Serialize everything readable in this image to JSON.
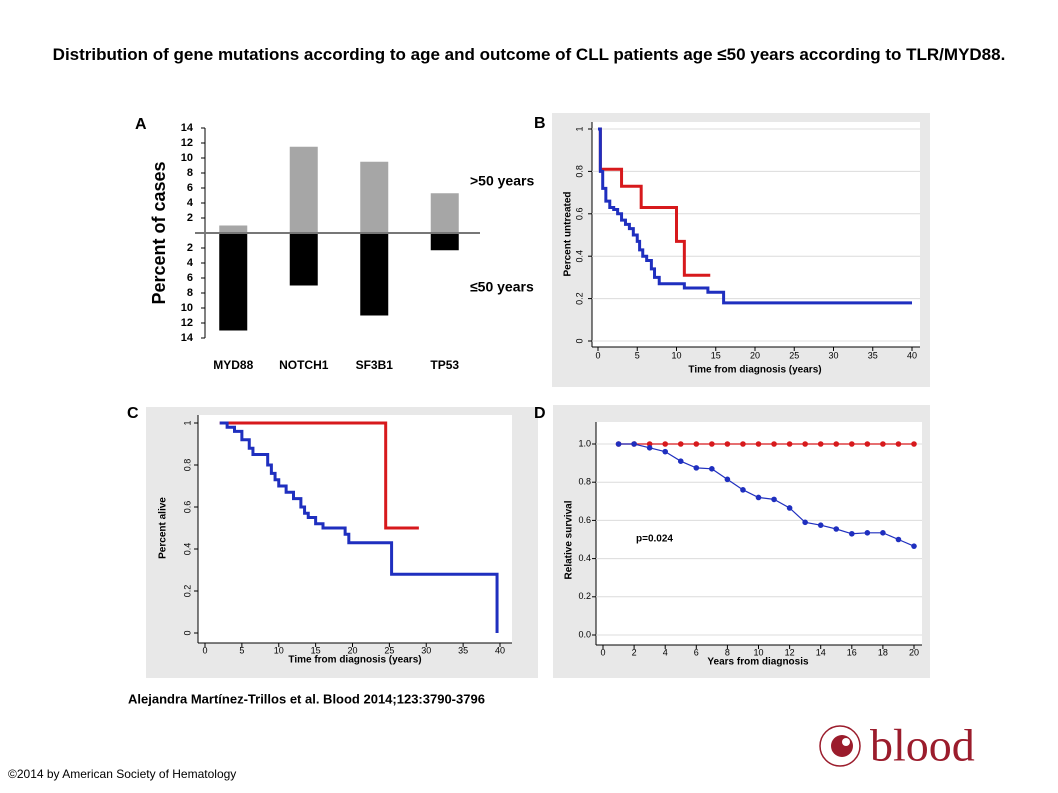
{
  "title": "Distribution of gene mutations according to age and outcome of CLL patients age ≤50 years according to TLR/MYD88.",
  "citation": "Alejandra Martínez-Trillos et al. Blood 2014;123:3790-3796",
  "copyright": "©2014 by American Society of Hematology",
  "logo": "blood",
  "chart_data": [
    {
      "type": "bar",
      "panel": "A",
      "ylabel": "Percent of cases",
      "categories": [
        "MYD88",
        "NOTCH1",
        "SF3B1",
        "TP53"
      ],
      "series": [
        {
          "name": ">50 years",
          "color": "#a6a6a6",
          "values": [
            1,
            11.5,
            9.5,
            5.3
          ]
        },
        {
          "name": "≤50 years",
          "color": "#000000",
          "values": [
            -13,
            -7,
            -11,
            -2.3
          ]
        }
      ],
      "ylim": [
        -14,
        14
      ],
      "yticks": [
        14,
        12,
        10,
        8,
        6,
        4,
        2,
        {
          "value": -2,
          "label": "2"
        },
        {
          "value": -4,
          "label": "4"
        },
        {
          "value": -6,
          "label": "6"
        },
        {
          "value": -8,
          "label": "8"
        },
        {
          "value": -10,
          "label": "10"
        },
        {
          "value": -12,
          "label": "12"
        },
        {
          "value": -14,
          "label": "14"
        }
      ]
    },
    {
      "type": "step",
      "panel": "B",
      "xlabel": "Time from diagnosis (years)",
      "ylabel": "Percent untreated",
      "grid": true,
      "series": [
        {
          "color": "#d7191c",
          "x": [
            0,
            0.3,
            3,
            5.5,
            10,
            11,
            14.3
          ],
          "values": [
            1,
            0.81,
            0.73,
            0.63,
            0.47,
            0.31,
            0.31
          ]
        },
        {
          "color": "#1f2fbf",
          "x": [
            0,
            0.3,
            0.6,
            1,
            1.5,
            2,
            2.5,
            3,
            3.5,
            4,
            4.5,
            5,
            5.3,
            5.7,
            6.2,
            6.8,
            7.2,
            7.8,
            11,
            14,
            16,
            40
          ],
          "values": [
            1,
            0.8,
            0.72,
            0.66,
            0.63,
            0.62,
            0.6,
            0.57,
            0.55,
            0.53,
            0.5,
            0.47,
            0.43,
            0.4,
            0.38,
            0.34,
            0.3,
            0.27,
            0.25,
            0.23,
            0.18,
            0.18
          ]
        }
      ],
      "xlim": [
        0,
        40
      ],
      "xticks": [
        0,
        5,
        10,
        15,
        20,
        25,
        30,
        35,
        40
      ],
      "ylim": [
        0,
        1
      ],
      "yticks": [
        0,
        0.2,
        0.4,
        0.6,
        0.8,
        1
      ]
    },
    {
      "type": "step",
      "panel": "C",
      "xlabel": "Time from diagnosis (years)",
      "ylabel": "Percent alive",
      "grid": false,
      "series": [
        {
          "color": "#d7191c",
          "x": [
            2,
            24.5,
            29
          ],
          "values": [
            1,
            0.5,
            0.5
          ]
        },
        {
          "color": "#1f2fbf",
          "x": [
            2,
            3,
            4,
            5,
            6,
            6.5,
            8.5,
            9,
            9.5,
            10,
            11,
            12,
            13,
            13.5,
            14,
            15,
            16,
            19,
            19.5,
            25.3,
            39.6
          ],
          "values": [
            1,
            0.98,
            0.96,
            0.92,
            0.88,
            0.85,
            0.8,
            0.76,
            0.73,
            0.7,
            0.67,
            0.64,
            0.6,
            0.57,
            0.55,
            0.52,
            0.5,
            0.47,
            0.43,
            0.28,
            0
          ]
        }
      ],
      "xlim": [
        0,
        40
      ],
      "xticks": [
        0,
        5,
        10,
        15,
        20,
        25,
        30,
        35,
        40
      ],
      "ylim": [
        0,
        1
      ],
      "yticks": [
        0,
        0.2,
        0.4,
        0.6,
        0.8,
        1
      ]
    },
    {
      "type": "line",
      "panel": "D",
      "xlabel": "Years from diagnosis",
      "ylabel": "Relative survival",
      "annotation": "p=0.024",
      "grid": true,
      "series": [
        {
          "color": "#d7191c",
          "x": [
            1,
            2,
            3,
            4,
            5,
            6,
            7,
            8,
            9,
            10,
            11,
            12,
            13,
            14,
            15,
            16,
            17,
            18,
            19,
            20
          ],
          "values": [
            1,
            1,
            1,
            1,
            1,
            1,
            1,
            1,
            1,
            1,
            1,
            1,
            1,
            1,
            1,
            1,
            1,
            1,
            1,
            1
          ]
        },
        {
          "color": "#1f2fbf",
          "x": [
            1,
            2,
            3,
            4,
            5,
            6,
            7,
            8,
            9,
            10,
            11,
            12,
            13,
            14,
            15,
            16,
            17,
            18,
            19,
            20
          ],
          "values": [
            1,
            1,
            0.98,
            0.96,
            0.91,
            0.875,
            0.87,
            0.815,
            0.76,
            0.72,
            0.71,
            0.665,
            0.59,
            0.575,
            0.555,
            0.53,
            0.535,
            0.535,
            0.5,
            0.465
          ]
        }
      ],
      "xlim": [
        0,
        20
      ],
      "xticks": [
        0,
        2,
        4,
        6,
        8,
        10,
        12,
        14,
        16,
        18,
        20
      ],
      "ylim": [
        0,
        1
      ],
      "yticks": [
        {
          "value": 0,
          "label": "0.0"
        },
        0.2,
        0.4,
        0.6,
        0.8,
        {
          "value": 1,
          "label": "1.0"
        }
      ]
    }
  ]
}
